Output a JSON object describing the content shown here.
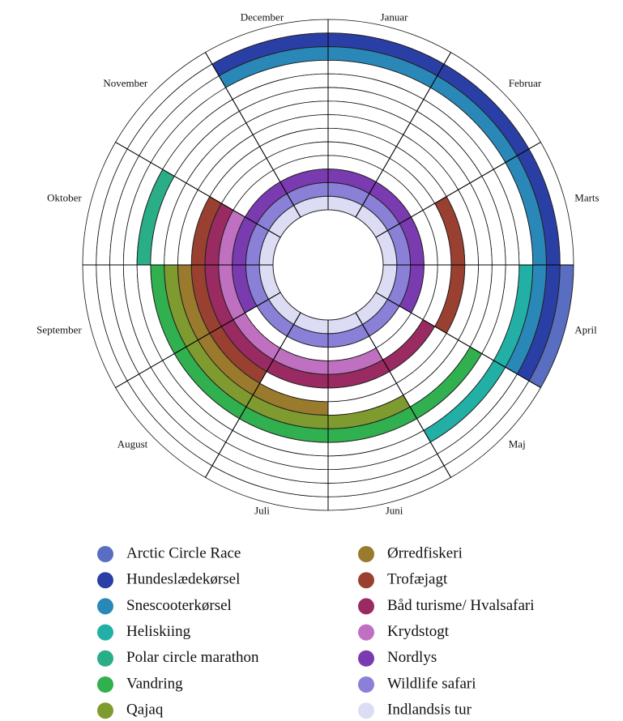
{
  "chart_data": {
    "type": "radial-calendar",
    "categories": [
      "Januar",
      "Februar",
      "Marts",
      "April",
      "Maj",
      "Juni",
      "Juli",
      "August",
      "September",
      "Oktober",
      "November",
      "December"
    ],
    "series": [
      {
        "name": "Arctic Circle Race",
        "color": "#5a6ec1",
        "values": [
          0,
          0,
          0,
          1,
          0,
          0,
          0,
          0,
          0,
          0,
          0,
          0
        ]
      },
      {
        "name": "Hundeslædekørsel",
        "color": "#2a3fa6",
        "values": [
          1,
          1,
          1,
          1,
          0,
          0,
          0,
          0,
          0,
          0,
          0,
          1
        ]
      },
      {
        "name": "Snescooterkørsel",
        "color": "#2a88b8",
        "values": [
          1,
          1,
          1,
          1,
          0,
          0,
          0,
          0,
          0,
          0,
          0,
          1
        ]
      },
      {
        "name": "Heliskiing",
        "color": "#22b0a6",
        "values": [
          0,
          0,
          0,
          1,
          1,
          0,
          0,
          0,
          0,
          0,
          0,
          0
        ]
      },
      {
        "name": "Polar circle marathon",
        "color": "#2aae88",
        "values": [
          0,
          0,
          0,
          0,
          0,
          0,
          0,
          0,
          0,
          1,
          0,
          0
        ]
      },
      {
        "name": "Vandring",
        "color": "#30b04e",
        "values": [
          0,
          0,
          0,
          0,
          1,
          1,
          1,
          1,
          1,
          0,
          0,
          0
        ]
      },
      {
        "name": "Qajaq",
        "color": "#7f9a2e",
        "values": [
          0,
          0,
          0,
          0,
          0,
          1,
          1,
          1,
          1,
          0,
          0,
          0
        ]
      },
      {
        "name": "Ørredfiskeri",
        "color": "#9a7a2c",
        "values": [
          0,
          0,
          0,
          0,
          0,
          0,
          1,
          1,
          1,
          0,
          0,
          0
        ]
      },
      {
        "name": "Trofæjagt",
        "color": "#9a4030",
        "values": [
          0,
          0,
          1,
          1,
          0,
          0,
          0,
          1,
          1,
          1,
          0,
          0
        ]
      },
      {
        "name": "Båd turisme/ Hvalsafari",
        "color": "#9a2a62",
        "values": [
          0,
          0,
          0,
          0,
          1,
          1,
          1,
          1,
          1,
          1,
          0,
          0
        ]
      },
      {
        "name": "Krydstogt",
        "color": "#c070c0",
        "values": [
          0,
          0,
          0,
          0,
          0,
          1,
          1,
          1,
          1,
          1,
          0,
          0
        ]
      },
      {
        "name": "Nordlys",
        "color": "#7a3ab0",
        "values": [
          1,
          1,
          1,
          1,
          0,
          0,
          0,
          0,
          1,
          1,
          1,
          1
        ]
      },
      {
        "name": "Wildlife safari",
        "color": "#8a80d8",
        "values": [
          1,
          1,
          1,
          1,
          1,
          1,
          1,
          1,
          1,
          1,
          1,
          1
        ]
      },
      {
        "name": "Indlandsis tur",
        "color": "#dcdcf4",
        "values": [
          1,
          1,
          1,
          1,
          1,
          1,
          1,
          1,
          1,
          1,
          1,
          1
        ]
      }
    ]
  }
}
